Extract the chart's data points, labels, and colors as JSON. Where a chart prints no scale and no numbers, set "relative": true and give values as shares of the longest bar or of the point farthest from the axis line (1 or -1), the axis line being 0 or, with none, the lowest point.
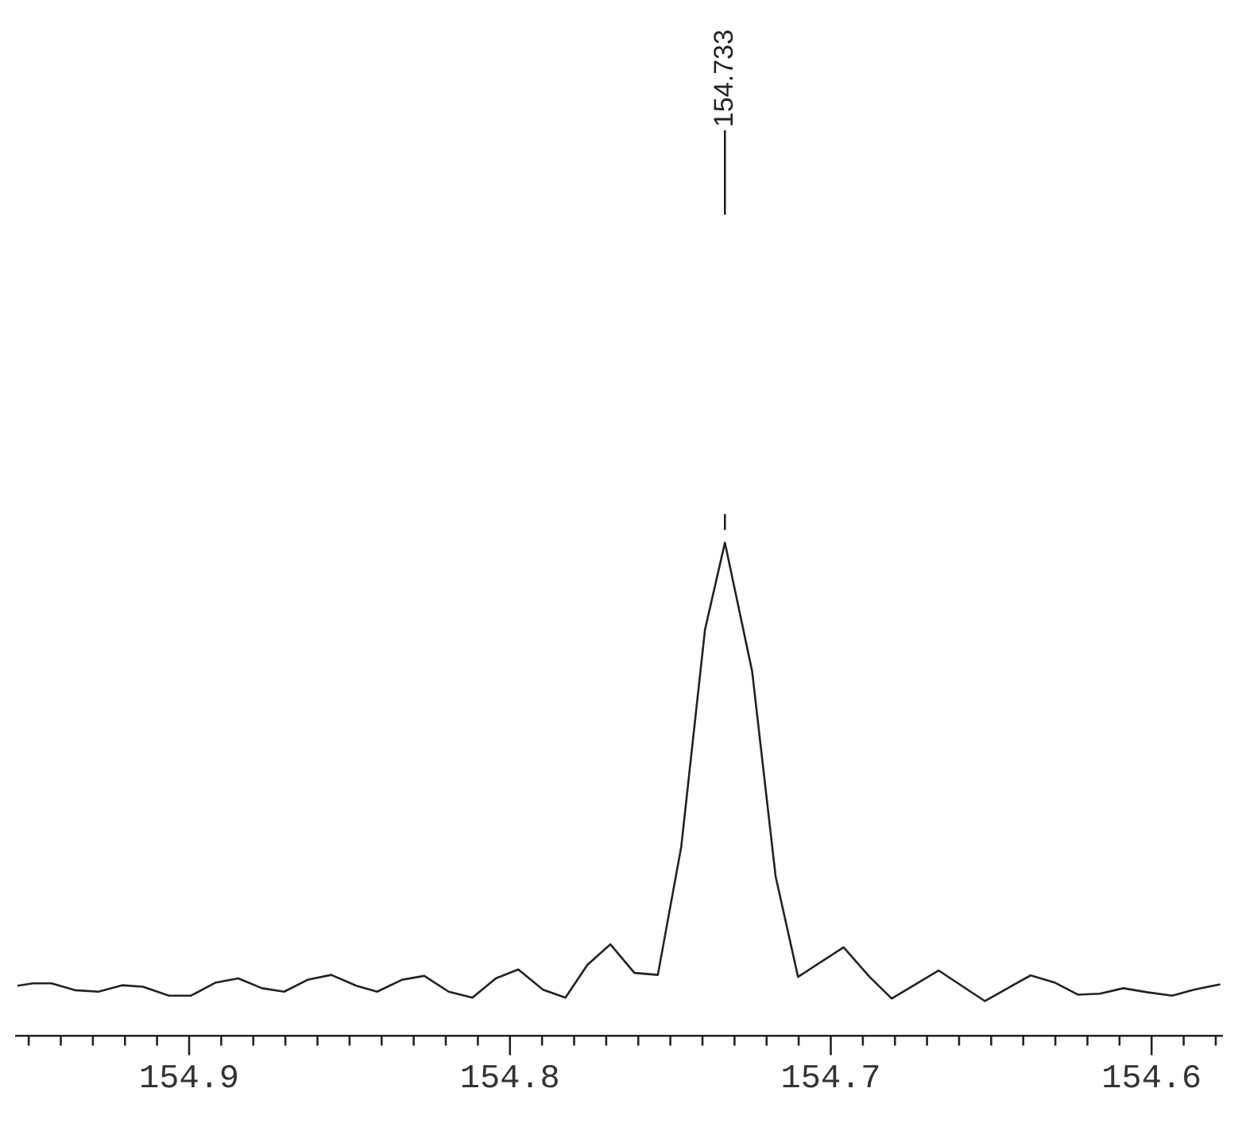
{
  "chart_data": {
    "type": "line",
    "relative": true,
    "marker": "none",
    "grid": false,
    "legend": false,
    "tick_labels": "x",
    "x": [
      154.9535,
      154.9487,
      154.9429,
      154.9356,
      154.9283,
      154.9209,
      154.9144,
      154.9063,
      154.8994,
      154.8919,
      154.8847,
      154.8773,
      154.8704,
      154.8631,
      154.8557,
      154.8479,
      154.8414,
      154.8337,
      154.8267,
      154.8191,
      154.8117,
      154.8044,
      154.7974,
      154.7897,
      154.7827,
      154.7759,
      154.7687,
      154.7612,
      154.7539,
      154.7466,
      154.7392,
      154.733,
      154.7245,
      154.7172,
      154.7102,
      154.696,
      154.6879,
      154.681,
      154.6664,
      154.652,
      154.6377,
      154.63,
      154.623,
      154.6161,
      154.6088,
      154.6015,
      154.5936,
      154.5868,
      154.5786
    ],
    "series": [
      {
        "color": "#222222",
        "values": [
          0.102,
          0.107,
          0.107,
          0.093,
          0.09,
          0.103,
          0.1,
          0.082,
          0.082,
          0.108,
          0.117,
          0.097,
          0.09,
          0.114,
          0.124,
          0.102,
          0.09,
          0.114,
          0.122,
          0.09,
          0.078,
          0.117,
          0.135,
          0.094,
          0.078,
          0.144,
          0.186,
          0.128,
          0.124,
          0.384,
          0.824,
          1,
          0.739,
          0.324,
          0.12,
          0.18,
          0.12,
          0.076,
          0.133,
          0.071,
          0.123,
          0.108,
          0.084,
          0.086,
          0.097,
          0.089,
          0.082,
          0.094,
          0.105
        ]
      }
    ],
    "xlim": [
      154.954,
      154.578
    ],
    "xticks": [
      {
        "value": 154.95,
        "label": null
      },
      {
        "value": 154.94,
        "label": null
      },
      {
        "value": 154.93,
        "label": null
      },
      {
        "value": 154.92,
        "label": null
      },
      {
        "value": 154.91,
        "label": null
      },
      154.9,
      {
        "value": 154.89,
        "label": null
      },
      {
        "value": 154.88,
        "label": null
      },
      {
        "value": 154.87,
        "label": null
      },
      {
        "value": 154.86,
        "label": null
      },
      {
        "value": 154.85,
        "label": null
      },
      {
        "value": 154.84,
        "label": null
      },
      {
        "value": 154.83,
        "label": null
      },
      {
        "value": 154.82,
        "label": null
      },
      {
        "value": 154.81,
        "label": null
      },
      154.8,
      {
        "value": 154.79,
        "label": null
      },
      {
        "value": 154.78,
        "label": null
      },
      {
        "value": 154.77,
        "label": null
      },
      {
        "value": 154.76,
        "label": null
      },
      {
        "value": 154.75,
        "label": null
      },
      {
        "value": 154.74,
        "label": null
      },
      {
        "value": 154.73,
        "label": null
      },
      {
        "value": 154.72,
        "label": null
      },
      {
        "value": 154.71,
        "label": null
      },
      154.7,
      {
        "value": 154.69,
        "label": null
      },
      {
        "value": 154.68,
        "label": null
      },
      {
        "value": 154.67,
        "label": null
      },
      {
        "value": 154.66,
        "label": null
      },
      {
        "value": 154.65,
        "label": null
      },
      {
        "value": 154.64,
        "label": null
      },
      {
        "value": 154.63,
        "label": null
      },
      {
        "value": 154.62,
        "label": null
      },
      {
        "value": 154.61,
        "label": null
      },
      154.6,
      {
        "value": 154.59,
        "label": null
      },
      {
        "value": 154.58,
        "label": null
      }
    ],
    "annotations": [
      "154.733"
    ]
  }
}
